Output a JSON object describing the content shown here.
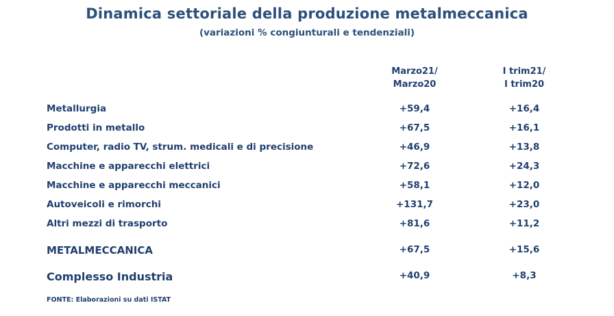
{
  "title": "Dinamica settoriale della produzione metalmeccanica",
  "subtitle": "(variazioni % congiunturali e tendenziali)",
  "columns": [
    {
      "line1": "Marzo21/",
      "line2": "Marzo20"
    },
    {
      "line1": "I trim21/",
      "line2": "I trim20"
    }
  ],
  "rows": [
    {
      "label": "Metallurgia",
      "v1": "+59,4",
      "v2": "+16,4"
    },
    {
      "label": "Prodotti in metallo",
      "v1": "+67,5",
      "v2": "+16,1"
    },
    {
      "label": "Computer, radio TV, strum. medicali e di precisione",
      "v1": "+46,9",
      "v2": "+13,8"
    },
    {
      "label": "Macchine e apparecchi elettrici",
      "v1": "+72,6",
      "v2": "+24,3"
    },
    {
      "label": "Macchine e apparecchi meccanici",
      "v1": "+58,1",
      "v2": "+12,0"
    },
    {
      "label": "Autoveicoli e rimorchi",
      "v1": "+131,7",
      "v2": "+23,0"
    },
    {
      "label": "Altri mezzi di trasporto",
      "v1": "+81,6",
      "v2": "+11,2"
    }
  ],
  "totals": [
    {
      "label": "METALMECCANICA",
      "v1": "+67,5",
      "v2": "+15,6"
    },
    {
      "label": "Complesso Industria",
      "v1": "+40,9",
      "v2": "+8,3"
    }
  ],
  "source": "FONTE: Elaborazioni su dati ISTAT"
}
